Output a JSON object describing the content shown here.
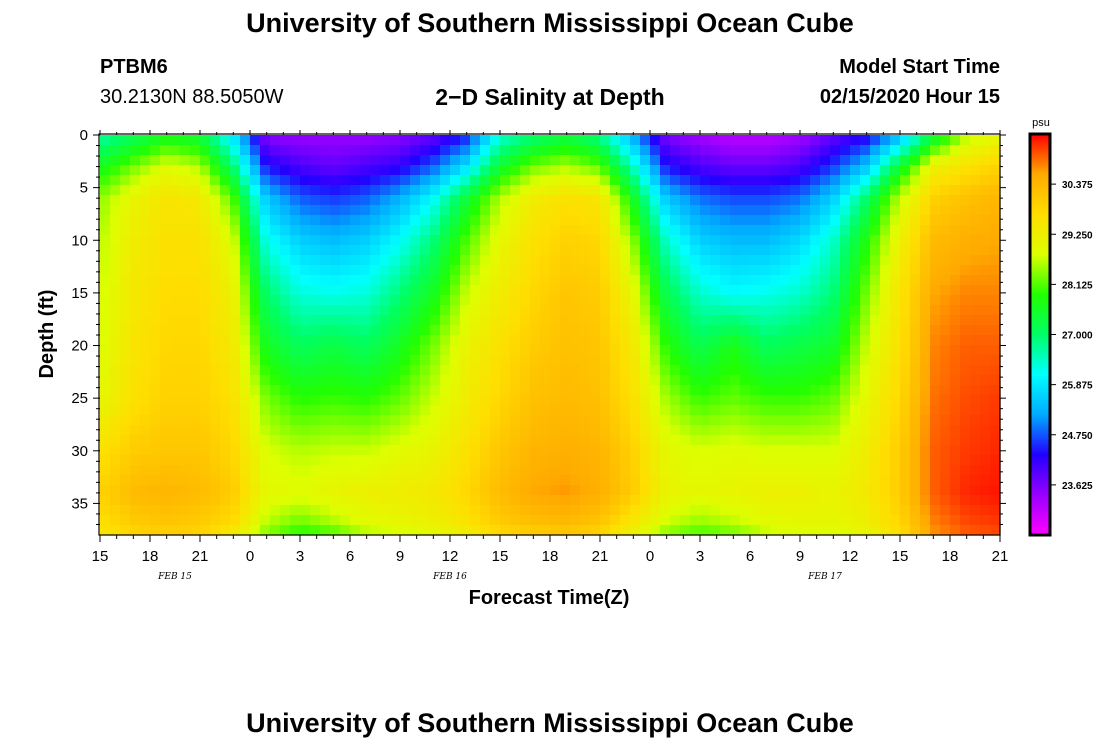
{
  "header": {
    "title": "University of Southern Mississippi Ocean Cube",
    "station_id": "PTBM6",
    "coordinates": "30.2130N 88.5050W",
    "model_start_label": "Model Start Time",
    "model_start_value": "02/15/2020 Hour 15"
  },
  "footer": {
    "title": "University of Southern Mississippi Ocean Cube"
  },
  "chart_data": {
    "type": "heatmap",
    "title": "2−D Salinity at Depth",
    "xlabel": "Forecast Time(Z)",
    "ylabel": "Depth (ft)",
    "x_tick_labels": [
      "15",
      "18",
      "21",
      "0",
      "3",
      "6",
      "9",
      "12",
      "15",
      "18",
      "21",
      "0",
      "3",
      "6",
      "9",
      "12",
      "15",
      "18",
      "21"
    ],
    "date_labels": [
      {
        "label": "FEB 15",
        "forecast_hour": 4.5
      },
      {
        "label": "FEB 16",
        "forecast_hour": 21
      },
      {
        "label": "FEB 17",
        "forecast_hour": 43.5
      }
    ],
    "x_range_hours": [
      0,
      54
    ],
    "y_ticks": [
      0,
      5,
      10,
      15,
      20,
      25,
      30,
      35
    ],
    "ylim": [
      0,
      38
    ],
    "colorbar": {
      "unit": "psu",
      "range": [
        22.5,
        31.5
      ],
      "tick_labels": [
        "30.375",
        "29.250",
        "28.125",
        "27.000",
        "25.875",
        "24.750",
        "23.625"
      ],
      "tick_values": [
        30.375,
        29.25,
        28.125,
        27.0,
        25.875,
        24.75,
        23.625
      ],
      "colors": [
        "#ff00ff",
        "#9900ff",
        "#2200ff",
        "#00aaff",
        "#00ffff",
        "#00ff66",
        "#22ff00",
        "#ddff00",
        "#ffdd00",
        "#ffaa00",
        "#ff0000"
      ]
    },
    "column_hours": [
      0,
      2,
      4,
      6,
      8,
      10,
      12,
      14,
      16,
      18,
      20,
      22,
      24,
      26,
      28,
      30,
      32,
      34,
      36,
      38,
      40,
      42,
      44,
      46,
      48,
      50,
      52,
      54
    ],
    "row_depths_ft": [
      0,
      3,
      6,
      10,
      15,
      20,
      25,
      30,
      34,
      37,
      38
    ],
    "salinity_psu": [
      [
        26.6,
        27.1,
        27.6,
        27.4,
        25.8,
        23.5,
        23.4,
        23.4,
        23.4,
        23.5,
        23.8,
        24.4,
        26.3,
        26.9,
        27.3,
        26.8,
        25.2,
        23.6,
        23.3,
        23.1,
        23.1,
        23.3,
        23.8,
        24.2,
        25.3,
        27.3,
        28.6,
        29.0
      ],
      [
        27.6,
        28.3,
        28.9,
        28.6,
        27.0,
        24.4,
        24.0,
        23.8,
        24.0,
        24.2,
        24.8,
        25.8,
        27.5,
        28.3,
        28.6,
        28.2,
        26.5,
        24.4,
        24.0,
        23.8,
        23.8,
        24.0,
        24.6,
        25.5,
        27.5,
        29.2,
        29.6,
        29.9
      ],
      [
        28.4,
        29.1,
        29.5,
        29.4,
        28.1,
        25.5,
        24.8,
        24.6,
        24.8,
        25.3,
        26.1,
        27.4,
        28.6,
        29.3,
        29.6,
        29.5,
        27.6,
        25.5,
        24.9,
        24.7,
        24.7,
        24.9,
        25.6,
        27.0,
        28.7,
        29.9,
        30.2,
        30.4
      ],
      [
        28.6,
        29.3,
        29.6,
        29.6,
        28.8,
        26.2,
        25.6,
        25.4,
        25.6,
        26.1,
        26.9,
        28.1,
        29.0,
        29.6,
        29.9,
        29.8,
        28.4,
        26.4,
        25.6,
        25.4,
        25.4,
        25.7,
        26.4,
        27.8,
        29.2,
        30.3,
        30.5,
        30.6
      ],
      [
        28.7,
        29.4,
        29.7,
        29.7,
        29.2,
        27.0,
        26.3,
        26.2,
        26.3,
        26.9,
        27.6,
        28.7,
        29.3,
        29.8,
        30.1,
        30.0,
        29.0,
        27.2,
        26.4,
        26.1,
        26.2,
        26.4,
        26.9,
        28.3,
        29.5,
        30.6,
        30.8,
        30.8
      ],
      [
        28.8,
        29.5,
        29.8,
        29.8,
        29.4,
        27.6,
        27.1,
        27.3,
        27.1,
        27.6,
        28.3,
        29.1,
        29.6,
        30.0,
        30.2,
        30.1,
        29.4,
        27.9,
        27.2,
        27.7,
        27.1,
        27.3,
        27.5,
        28.7,
        29.6,
        30.8,
        31.0,
        31.0
      ],
      [
        29.0,
        29.6,
        29.9,
        29.9,
        29.6,
        28.3,
        27.9,
        28.0,
        27.9,
        28.2,
        28.7,
        29.3,
        29.8,
        30.2,
        30.3,
        30.2,
        29.6,
        28.5,
        28.0,
        28.2,
        28.0,
        28.0,
        28.2,
        29.0,
        29.8,
        30.9,
        31.1,
        31.2
      ],
      [
        29.6,
        30.0,
        30.1,
        30.1,
        29.8,
        28.8,
        28.6,
        28.7,
        28.7,
        28.9,
        29.1,
        29.6,
        30.1,
        30.4,
        30.5,
        30.4,
        29.9,
        29.0,
        28.8,
        28.9,
        28.8,
        28.8,
        28.8,
        29.3,
        30.0,
        31.0,
        31.2,
        31.3
      ],
      [
        29.9,
        30.3,
        30.4,
        30.3,
        30.0,
        29.0,
        28.9,
        29.1,
        29.2,
        29.3,
        29.4,
        29.8,
        30.3,
        30.6,
        30.7,
        30.5,
        30.0,
        29.1,
        29.0,
        29.1,
        29.2,
        29.2,
        29.1,
        29.4,
        30.0,
        31.0,
        31.3,
        31.4
      ],
      [
        29.6,
        30.0,
        30.1,
        30.0,
        29.7,
        28.6,
        28.2,
        28.5,
        28.9,
        29.0,
        29.2,
        29.5,
        30.0,
        30.2,
        30.3,
        30.1,
        29.4,
        28.7,
        28.4,
        28.6,
        28.9,
        29.0,
        29.0,
        29.2,
        29.8,
        30.8,
        31.1,
        31.2
      ],
      [
        29.4,
        29.8,
        29.9,
        29.8,
        29.3,
        28.3,
        27.8,
        28.0,
        28.5,
        28.7,
        28.9,
        29.2,
        29.7,
        29.9,
        30.0,
        29.8,
        29.1,
        28.3,
        28.0,
        28.2,
        28.6,
        28.8,
        28.8,
        29.0,
        29.6,
        30.7,
        31.0,
        31.1
      ]
    ]
  }
}
